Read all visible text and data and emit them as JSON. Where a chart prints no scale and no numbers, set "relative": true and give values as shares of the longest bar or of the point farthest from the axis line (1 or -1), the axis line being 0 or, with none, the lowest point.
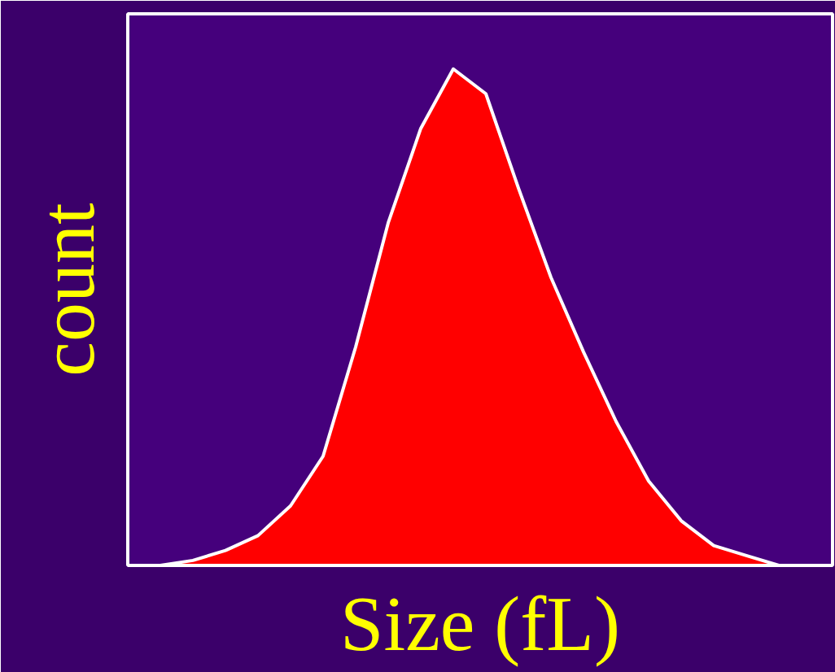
{
  "chart_data": {
    "type": "area",
    "relative": true,
    "xlabel": "Size (fL)",
    "ylabel": "count",
    "categories": [
      null,
      null,
      null,
      null,
      null,
      null,
      null,
      null,
      null,
      null,
      null,
      null,
      null,
      null,
      null,
      null,
      null,
      null,
      null,
      null
    ],
    "series": [
      {
        "color": "#ff0000",
        "values": [
          0,
          0.01,
          0.03,
          0.06,
          0.12,
          0.22,
          0.44,
          0.69,
          0.88,
          1,
          0.95,
          0.76,
          0.58,
          0.43,
          0.29,
          0.17,
          0.09,
          0.04,
          0.02,
          0
        ]
      }
    ]
  }
}
